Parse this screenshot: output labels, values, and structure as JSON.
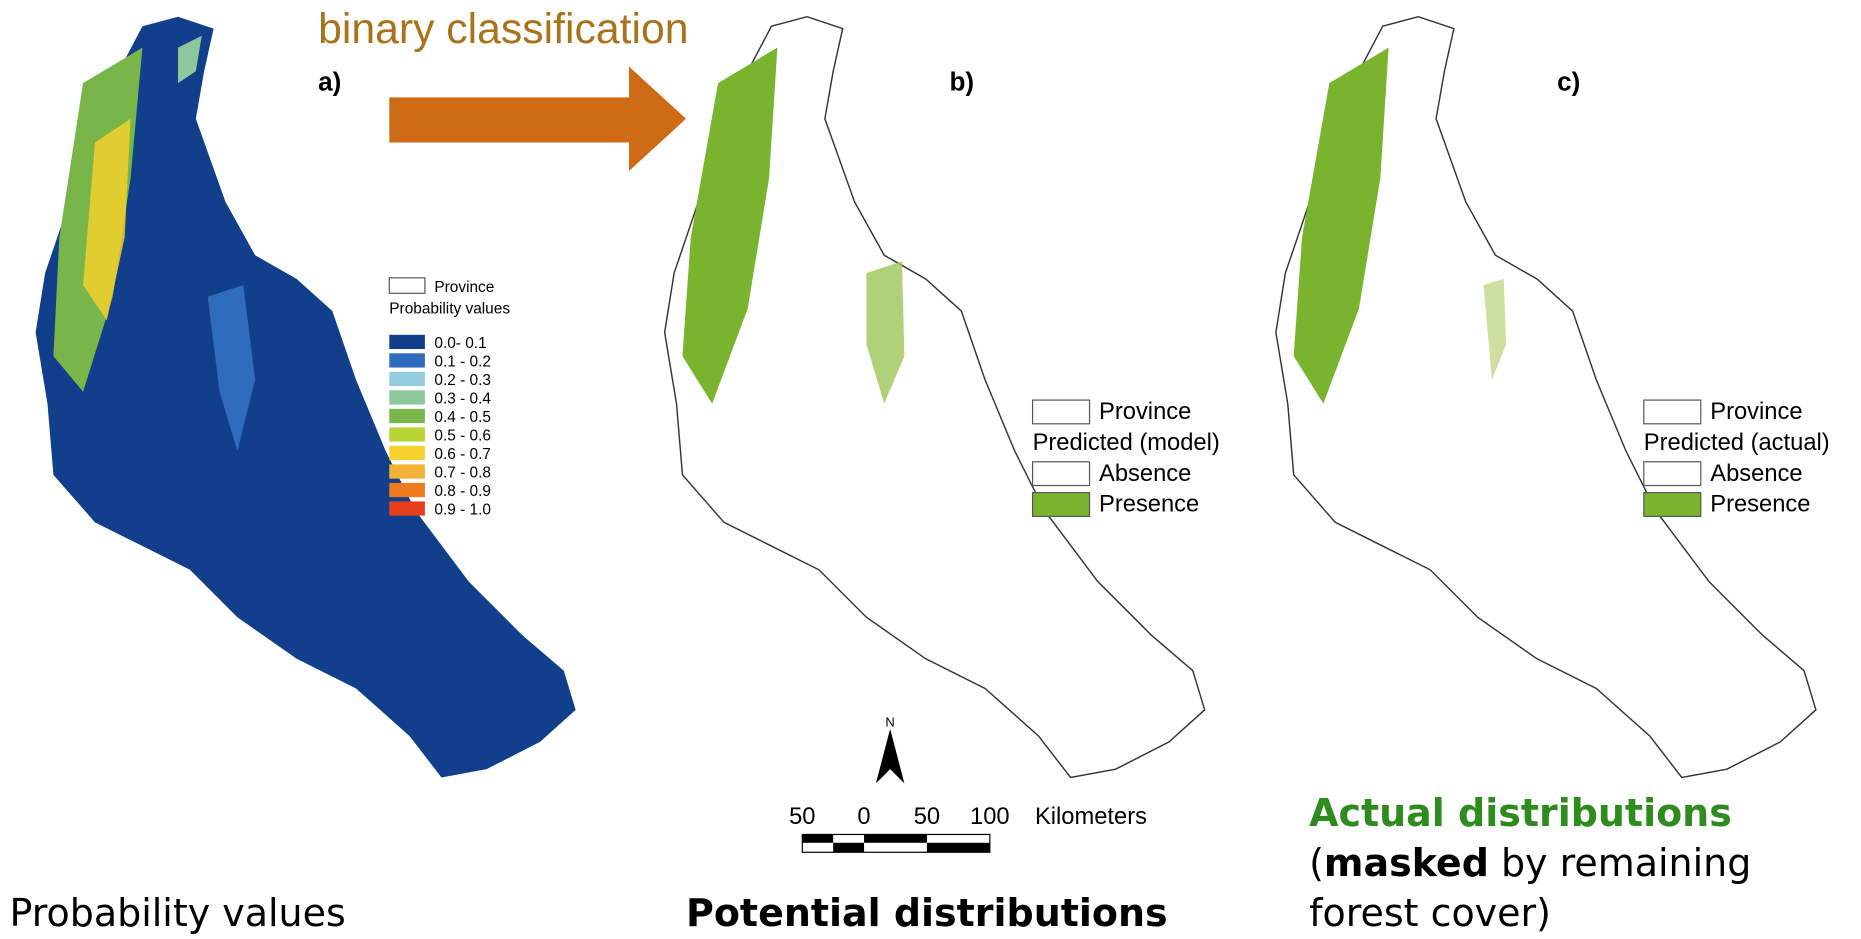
{
  "arrow_label": "binary classification",
  "panels": [
    {
      "label": "a)",
      "legend": {
        "province": "Province",
        "title": "Probability values",
        "classes": [
          {
            "label": "0.0- 0.1",
            "color": "#123f8c"
          },
          {
            "label": "0.1 - 0.2",
            "color": "#2f6cbd"
          },
          {
            "label": "0.2 - 0.3",
            "color": "#93cde0"
          },
          {
            "label": "0.3 - 0.4",
            "color": "#8dc79c"
          },
          {
            "label": "0.4 - 0.5",
            "color": "#79b64a"
          },
          {
            "label": "0.5 - 0.6",
            "color": "#b9d535"
          },
          {
            "label": "0.6 - 0.7",
            "color": "#f5d12d"
          },
          {
            "label": "0.7 - 0.8",
            "color": "#f3b236"
          },
          {
            "label": "0.8 - 0.9",
            "color": "#f07a1e"
          },
          {
            "label": "0.9 - 1.0",
            "color": "#e6401b"
          }
        ]
      },
      "caption": "Probability values"
    },
    {
      "label": "b)",
      "legend": {
        "province": "Province",
        "title": "Predicted (model)",
        "absence": "Absence",
        "presence": "Presence"
      },
      "caption": "Potential distributions"
    },
    {
      "label": "c)",
      "legend": {
        "province": "Province",
        "title": "Predicted (actual)",
        "absence": "Absence",
        "presence": "Presence"
      },
      "caption": {
        "line1": "Actual distributions",
        "line2": [
          "(",
          "masked",
          " by remaining"
        ],
        "line3": "forest cover)"
      }
    }
  ],
  "scale_bar": {
    "north": "N",
    "labels": [
      "50",
      "0",
      "50",
      "100"
    ],
    "unit": "Kilometers"
  }
}
